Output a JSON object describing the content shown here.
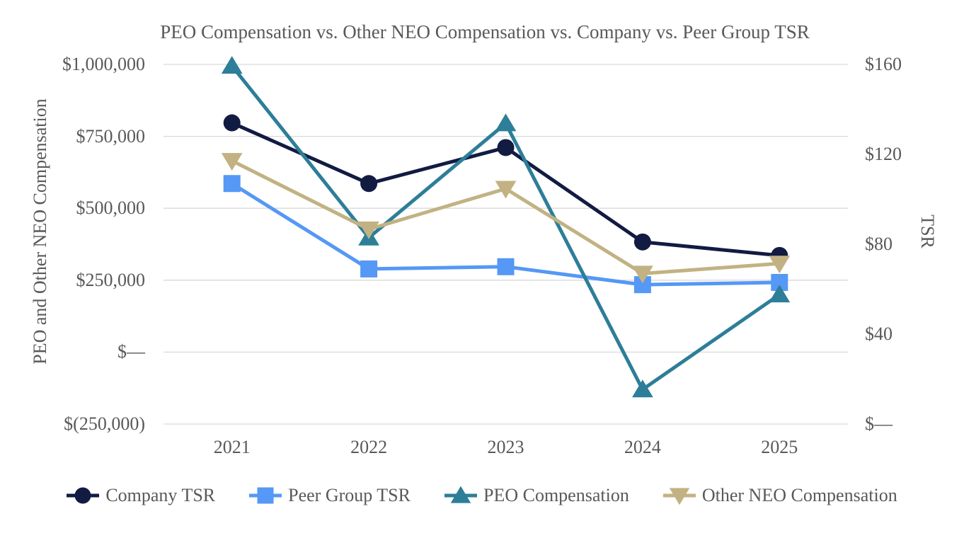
{
  "chart_data": {
    "type": "line",
    "title": "PEO Compensation vs. Other NEO Compensation vs. Company vs. Peer Group TSR",
    "x_categories": [
      "2021",
      "2022",
      "2023",
      "2024",
      "2025"
    ],
    "left_axis": {
      "label": "PEO and Other NEO Compensation",
      "min": -250000,
      "max": 1000000,
      "tick_values": [
        1000000,
        750000,
        500000,
        250000,
        0,
        -250000
      ],
      "tick_labels": [
        "$1,000,000",
        "$750,000",
        "$500,000",
        "$250,000",
        "$—",
        "$(250,000)"
      ]
    },
    "right_axis": {
      "label": "TSR",
      "min": 0,
      "max": 160,
      "tick_values": [
        160,
        120,
        80,
        40,
        0
      ],
      "tick_labels": [
        "$160",
        "$120",
        "$80",
        "$40",
        "$—"
      ]
    },
    "grid": true,
    "grid_color": "#d9d9d9",
    "legend_position": "bottom",
    "text_color": "#595959",
    "series": [
      {
        "name": "Company TSR",
        "axis": "right",
        "marker": "circle",
        "color": "#121b42",
        "values": [
          134,
          107,
          123,
          81,
          75
        ]
      },
      {
        "name": "Peer Group TSR",
        "axis": "right",
        "marker": "square",
        "color": "#5598f5",
        "values": [
          107,
          69,
          70,
          62,
          63
        ]
      },
      {
        "name": "PEO Compensation",
        "axis": "left",
        "marker": "triangle-up",
        "color": "#2d7e98",
        "values": [
          995000,
          398000,
          795000,
          -130000,
          200000
        ]
      },
      {
        "name": "Other NEO Compensation",
        "axis": "left",
        "marker": "triangle-down",
        "color": "#c2b283",
        "values": [
          665000,
          427000,
          568000,
          273000,
          308000
        ]
      }
    ]
  }
}
